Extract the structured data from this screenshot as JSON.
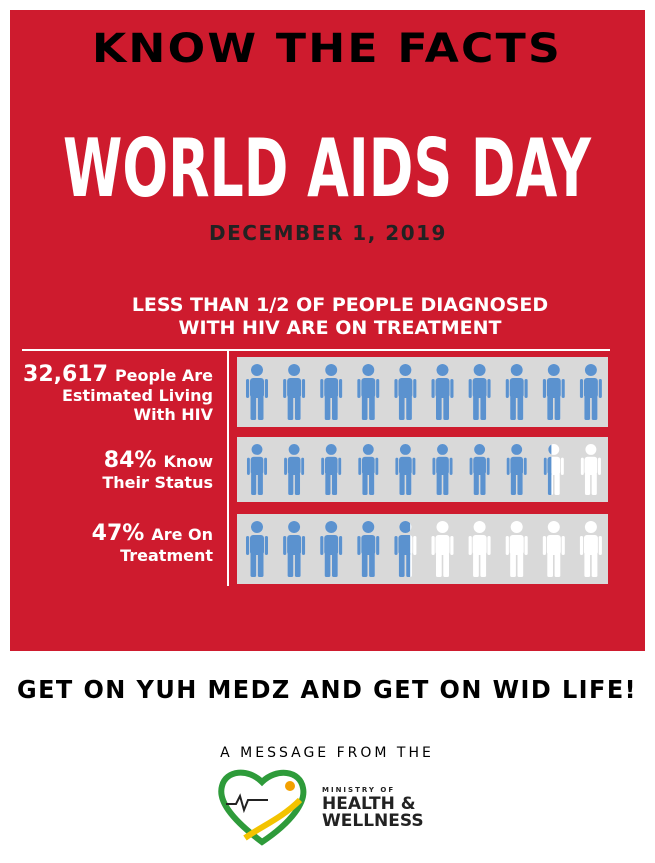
{
  "header": {
    "kicker": "KNOW THE FACTS",
    "title": "WORLD AIDS DAY",
    "date": "DECEMBER 1, 2019"
  },
  "subtitle_lines": [
    "LESS THAN 1/2 OF PEOPLE DIAGNOSED",
    "WITH HIV ARE ON TREATMENT"
  ],
  "rows": [
    {
      "value": 32617,
      "value_label": "32,617",
      "label_lines": [
        "People Are",
        "Estimated Living",
        "With HIV"
      ],
      "fill": 100
    },
    {
      "value": 84,
      "value_label": "84%",
      "label_lines": [
        "Know",
        "Their Status"
      ]
    },
    {
      "value": 47,
      "value_label": "47%",
      "label_lines": [
        "Are On",
        "Treatment"
      ]
    }
  ],
  "slogan": "GET ON YUH MEDZ AND GET ON WID LIFE!",
  "footer": {
    "message": "A MESSAGE FROM THE",
    "logo_lines": [
      "MINISTRY OF",
      "HEALTH &",
      "WELLNESS"
    ]
  }
}
